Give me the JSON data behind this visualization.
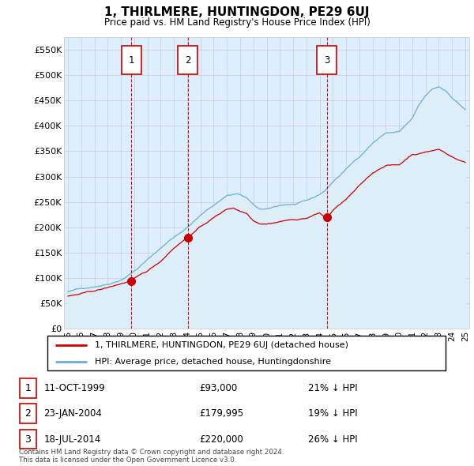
{
  "title": "1, THIRLMERE, HUNTINGDON, PE29 6UJ",
  "subtitle": "Price paid vs. HM Land Registry's House Price Index (HPI)",
  "legend_line1": "1, THIRLMERE, HUNTINGDON, PE29 6UJ (detached house)",
  "legend_line2": "HPI: Average price, detached house, Huntingdonshire",
  "footer1": "Contains HM Land Registry data © Crown copyright and database right 2024.",
  "footer2": "This data is licensed under the Open Government Licence v3.0.",
  "sales": [
    {
      "num": 1,
      "date": "11-OCT-1999",
      "price": 93000,
      "hpi_rel": "21% ↓ HPI",
      "x_year": 1999.78
    },
    {
      "num": 2,
      "date": "23-JAN-2004",
      "price": 179995,
      "hpi_rel": "19% ↓ HPI",
      "x_year": 2004.06
    },
    {
      "num": 3,
      "date": "18-JUL-2014",
      "price": 220000,
      "hpi_rel": "26% ↓ HPI",
      "x_year": 2014.54
    }
  ],
  "hpi_color": "#6baed6",
  "hpi_fill_color": "#ddeeff",
  "sale_color": "#cc0000",
  "vline_color": "#cc0000",
  "grid_color": "#cccccc",
  "plot_bg_color": "#ddeeff",
  "ylim": [
    0,
    575000
  ],
  "xlim_start": 1994.7,
  "xlim_end": 2025.3,
  "yticks": [
    0,
    50000,
    100000,
    150000,
    200000,
    250000,
    300000,
    350000,
    400000,
    450000,
    500000,
    550000
  ],
  "ytick_labels": [
    "£0",
    "£50K",
    "£100K",
    "£150K",
    "£200K",
    "£250K",
    "£300K",
    "£350K",
    "£400K",
    "£450K",
    "£500K",
    "£550K"
  ],
  "xtick_years": [
    1995,
    1996,
    1997,
    1998,
    1999,
    2000,
    2001,
    2002,
    2003,
    2004,
    2005,
    2006,
    2007,
    2008,
    2009,
    2010,
    2011,
    2012,
    2013,
    2014,
    2015,
    2016,
    2017,
    2018,
    2019,
    2020,
    2021,
    2022,
    2023,
    2024,
    2025
  ]
}
